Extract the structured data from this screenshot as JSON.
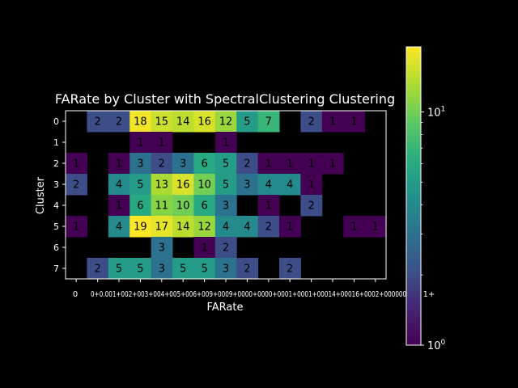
{
  "chart_data": {
    "type": "heatmap",
    "title": "FARate by Cluster with SpectralClustering Clustering",
    "xlabel": "FARate",
    "ylabel": "Cluster",
    "x_tick_labels": [
      "0",
      "0+0.001",
      "0+002+003+004+005+006",
      "+00.9",
      "+009",
      "+000",
      "000",
      "+0001",
      "+0001",
      "1+0001",
      "+00014",
      "+00016",
      "+00017",
      "+00024",
      "+000000000",
      "1+"
    ],
    "x_tick_text_raw": "0+0.001+002+003+004+005+006+009+0009+0000+0000+0001+0001+00014+00016+0002+000000000",
    "x_tick_first": "0",
    "x_tick_last": "1+",
    "y_categories": [
      "0",
      "1",
      "2",
      "3",
      "4",
      "5",
      "6",
      "7"
    ],
    "columns": 15,
    "values": [
      [
        null,
        2,
        2,
        18,
        15,
        14,
        16,
        12,
        5,
        7,
        null,
        2,
        1,
        1,
        null
      ],
      [
        null,
        null,
        null,
        1,
        1,
        null,
        null,
        1,
        null,
        null,
        null,
        null,
        null,
        null,
        null
      ],
      [
        1,
        null,
        1,
        3,
        2,
        3,
        6,
        5,
        2,
        1,
        1,
        1,
        1,
        null,
        null
      ],
      [
        2,
        null,
        4,
        5,
        13,
        16,
        10,
        5,
        3,
        4,
        4,
        1,
        null,
        null,
        null
      ],
      [
        null,
        null,
        1,
        6,
        11,
        10,
        6,
        3,
        null,
        1,
        null,
        2,
        null,
        null,
        null
      ],
      [
        1,
        null,
        4,
        19,
        17,
        14,
        12,
        4,
        4,
        2,
        1,
        null,
        null,
        1,
        1
      ],
      [
        null,
        null,
        null,
        null,
        3,
        null,
        1,
        2,
        null,
        null,
        null,
        null,
        null,
        null,
        null
      ],
      [
        null,
        2,
        5,
        5,
        3,
        5,
        5,
        3,
        2,
        null,
        2,
        null,
        null,
        null,
        null
      ]
    ],
    "colormap": "viridis",
    "color_scale": "log",
    "color_range": [
      1,
      19
    ],
    "colorbar_ticks": [
      "10^0",
      "10^1"
    ],
    "colorbar_tick_values": [
      1,
      10
    ],
    "annotation_colors": {
      "dark_cells": "#000000"
    },
    "background": "#000000",
    "foreground": "#ffffff",
    "grid": false,
    "legend": "colorbar-right"
  }
}
